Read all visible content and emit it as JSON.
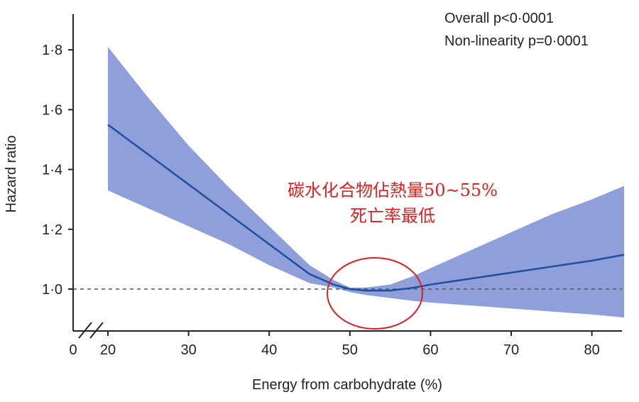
{
  "chart_data": {
    "type": "line",
    "title": "",
    "xlabel": "Energy from carbohydrate (%)",
    "ylabel": "Hazard ratio",
    "xlim": [
      18,
      84
    ],
    "ylim": [
      0.87,
      1.82
    ],
    "x_ticks": [
      "0",
      "20",
      "30",
      "40",
      "50",
      "60",
      "70",
      "80"
    ],
    "y_ticks": [
      "1·0",
      "1·2",
      "1·4",
      "1·6",
      "1·8"
    ],
    "reference_line": 1.0,
    "stats": [
      "Overall p<0·0001",
      "Non-linearity p=0·0001"
    ],
    "annotation": {
      "line1": "碳水化合物佔熱量50~55%",
      "line2": "死亡率最低"
    },
    "colors": {
      "line": "#1f4fa0",
      "band": "#8f9fd9",
      "annotation": "#e02020",
      "reference": "#555555"
    },
    "series": [
      {
        "x": [
          20,
          25,
          30,
          35,
          40,
          45,
          48,
          50,
          52,
          55,
          58,
          60,
          65,
          70,
          75,
          80,
          84
        ],
        "y": [
          1.55,
          1.45,
          1.35,
          1.25,
          1.15,
          1.05,
          1.015,
          1.0,
          0.995,
          0.995,
          1.005,
          1.015,
          1.035,
          1.055,
          1.075,
          1.095,
          1.115
        ],
        "lower": [
          1.33,
          1.27,
          1.21,
          1.15,
          1.08,
          1.02,
          1.005,
          0.99,
          0.98,
          0.97,
          0.96,
          0.955,
          0.945,
          0.935,
          0.925,
          0.915,
          0.905
        ],
        "upper": [
          1.81,
          1.64,
          1.48,
          1.34,
          1.21,
          1.08,
          1.03,
          1.005,
          1.005,
          1.015,
          1.045,
          1.07,
          1.13,
          1.19,
          1.25,
          1.3,
          1.345
        ]
      }
    ]
  }
}
